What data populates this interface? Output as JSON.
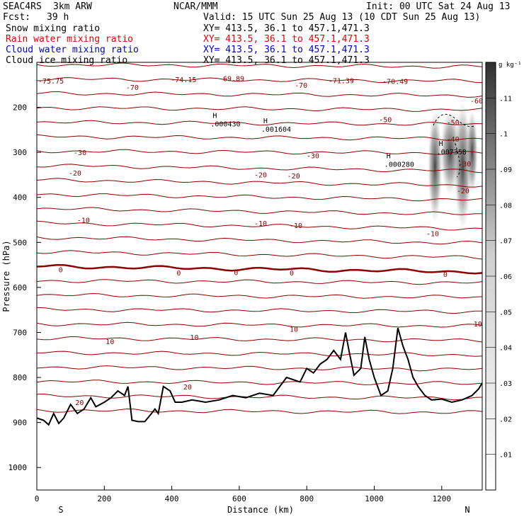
{
  "header": {
    "model": "SEAC4RS",
    "resolution": "3km ARW",
    "org": "NCAR/MMM",
    "init": "Init: 00 UTC Sat 24 Aug 13",
    "fcst_label": "Fcst:",
    "fcst_value": "39 h",
    "valid": "Valid: 15 UTC Sun 25 Aug 13 (10 CDT Sun 25 Aug 13)"
  },
  "fields": [
    {
      "name": "Snow mixing ratio",
      "xy": "XY= 413.5, 36.1 to 457.1,471.3",
      "color": "#000000"
    },
    {
      "name": "Rain water mixing ratio",
      "xy": "XY= 413.5, 36.1 to 457.1,471.3",
      "color": "#e60000"
    },
    {
      "name": "Cloud water mixing ratio",
      "xy": "XY= 413.5, 36.1 to 457.1,471.3",
      "color": "#0000d0"
    },
    {
      "name": "Cloud ice mixing ratio",
      "xy": "XY= 413.5, 36.1 to 457.1,471.3",
      "color": "#000000"
    }
  ],
  "chart_data": {
    "type": "contour",
    "xlabel": "Distance (km)",
    "ylabel": "Pressure (hPa)",
    "xlim": [
      0,
      1320
    ],
    "ylim": [
      1050,
      100
    ],
    "x_ticks": [
      0,
      200,
      400,
      600,
      800,
      1000,
      1200
    ],
    "y_ticks": [
      200,
      300,
      400,
      500,
      600,
      700,
      800,
      900,
      1000
    ],
    "x_end_labels": {
      "left": "S",
      "right": "N"
    },
    "isotherm_color": "#8b0000",
    "isotherm_labels": [
      {
        "text": "-74.15",
        "x": 393,
        "p": 138
      },
      {
        "text": "-75.75",
        "x": 0,
        "p": 141
      },
      {
        "text": "-70",
        "x": 260,
        "p": 155
      },
      {
        "text": "-70",
        "x": 760,
        "p": 150
      },
      {
        "text": "-70.49",
        "x": 1020,
        "p": 142
      },
      {
        "text": "-69.89",
        "x": 535,
        "p": 135
      },
      {
        "text": "-71.39",
        "x": 860,
        "p": 140
      },
      {
        "text": "-60",
        "x": 1280,
        "p": 185
      },
      {
        "text": "-50",
        "x": 1010,
        "p": 227
      },
      {
        "text": "-50",
        "x": 1210,
        "p": 233
      },
      {
        "text": "-40",
        "x": 1210,
        "p": 270
      },
      {
        "text": "-30",
        "x": 105,
        "p": 300
      },
      {
        "text": "-30",
        "x": 795,
        "p": 307
      },
      {
        "text": "-30",
        "x": 1245,
        "p": 325
      },
      {
        "text": "-20",
        "x": 90,
        "p": 345
      },
      {
        "text": "-20",
        "x": 640,
        "p": 349
      },
      {
        "text": "-20",
        "x": 738,
        "p": 352
      },
      {
        "text": "-20",
        "x": 1240,
        "p": 385
      },
      {
        "text": "-10",
        "x": 115,
        "p": 450
      },
      {
        "text": "-10",
        "x": 640,
        "p": 457
      },
      {
        "text": "-10",
        "x": 745,
        "p": 462
      },
      {
        "text": "-10",
        "x": 1150,
        "p": 480
      },
      {
        "text": "0",
        "x": 60,
        "p": 560
      },
      {
        "text": "0",
        "x": 410,
        "p": 567
      },
      {
        "text": "0",
        "x": 580,
        "p": 566
      },
      {
        "text": "0",
        "x": 745,
        "p": 567
      },
      {
        "text": "0",
        "x": 1200,
        "p": 570
      },
      {
        "text": "10",
        "x": 1290,
        "p": 680
      },
      {
        "text": "10",
        "x": 745,
        "p": 692
      },
      {
        "text": "10",
        "x": 450,
        "p": 710
      },
      {
        "text": "10",
        "x": 200,
        "p": 720
      },
      {
        "text": "20",
        "x": 430,
        "p": 820
      },
      {
        "text": "20",
        "x": 110,
        "p": 855
      }
    ],
    "extrema": [
      {
        "label": "H",
        "value": ".000430",
        "x": 515,
        "p": 228
      },
      {
        "label": "H",
        "value": ".001604",
        "x": 665,
        "p": 240
      },
      {
        "label": "H",
        "value": ".007358",
        "x": 1185,
        "p": 290
      },
      {
        "label": "H",
        "value": ".000280",
        "x": 1030,
        "p": 318
      }
    ],
    "colorbar": {
      "unit": "g kg⁻¹",
      "ticks": [
        ".01",
        ".02",
        ".03",
        ".04",
        ".05",
        ".06",
        ".07",
        ".08",
        ".09",
        ".1",
        ".11"
      ]
    }
  }
}
